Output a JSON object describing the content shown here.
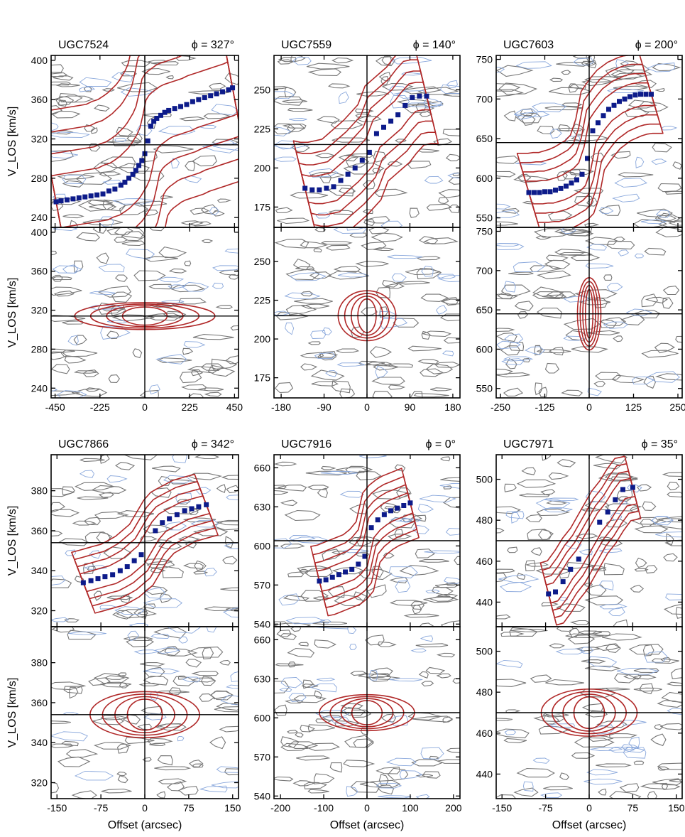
{
  "figure": {
    "ylabel": "V_LOS [km/s]",
    "xlabel": "Offset (arcsec)",
    "colors": {
      "pv_contour": "#b02828",
      "noise_positive": "#777777",
      "noise_negative": "#8aa8dc",
      "rotation_curve": "#0d1b8a",
      "axes": "#000000"
    }
  },
  "chart_data": [
    {
      "type": "scatter",
      "galaxy": "UGC7524",
      "phi_label": "ϕ = 327°",
      "pv_panel": "major-axis",
      "x_ticks": [
        -450,
        -225,
        0,
        225,
        450
      ],
      "xlim": [
        -470,
        470
      ],
      "y_ticks": [
        240,
        280,
        320,
        360,
        400
      ],
      "ylim": [
        230,
        405
      ],
      "systemic_velocity": 314,
      "major_width": 48,
      "minor_width": 12,
      "minor_half_extent": 320,
      "rotation_curve": {
        "x": [
          -445,
          -420,
          -390,
          -360,
          -330,
          -300,
          -270,
          -240,
          -210,
          -180,
          -150,
          -120,
          -100,
          -80,
          -60,
          -45,
          -30,
          -15,
          0,
          15,
          30,
          45,
          60,
          80,
          100,
          120,
          150,
          180,
          210,
          240,
          270,
          300,
          330,
          360,
          390,
          420,
          440
        ],
        "y": [
          256,
          257,
          258,
          259,
          260,
          261,
          262,
          263,
          264,
          267,
          269,
          273,
          276,
          280,
          284,
          288,
          293,
          298,
          305,
          318,
          333,
          338,
          341,
          344,
          347,
          349,
          351,
          353,
          355,
          358,
          360,
          362,
          364,
          366,
          368,
          370,
          372
        ]
      }
    },
    {
      "type": "scatter",
      "galaxy": "UGC7559",
      "phi_label": "ϕ = 140°",
      "pv_panel": "major-axis",
      "x_ticks": [
        -180,
        -90,
        0,
        90,
        180
      ],
      "xlim": [
        -195,
        195
      ],
      "y_ticks": [
        175,
        200,
        225,
        250
      ],
      "ylim": [
        162,
        272
      ],
      "systemic_velocity": 215,
      "major_width": 16,
      "minor_width": 14,
      "minor_half_extent": 55,
      "rotation_curve": {
        "x": [
          -130,
          -115,
          -100,
          -85,
          -70,
          -55,
          -40,
          -25,
          -10,
          5,
          20,
          35,
          50,
          65,
          80,
          95,
          110,
          125
        ],
        "y": [
          187,
          186,
          186,
          187,
          188,
          192,
          196,
          200,
          205,
          210,
          222,
          226,
          230,
          234,
          240,
          245,
          246,
          246
        ]
      }
    },
    {
      "type": "scatter",
      "galaxy": "UGC7603",
      "phi_label": "ϕ = 200°",
      "pv_panel": "major-axis",
      "x_ticks": [
        -250,
        -125,
        0,
        125,
        250
      ],
      "xlim": [
        -262,
        262
      ],
      "y_ticks": [
        550,
        600,
        650,
        700,
        750
      ],
      "ylim": [
        538,
        755
      ],
      "systemic_velocity": 645,
      "major_width": 26,
      "minor_width": 40,
      "minor_half_extent": 30,
      "rotation_curve": {
        "x": [
          -170,
          -155,
          -140,
          -125,
          -110,
          -95,
          -80,
          -65,
          -50,
          -35,
          -20,
          -5,
          10,
          25,
          40,
          55,
          70,
          85,
          100,
          115,
          130,
          145,
          160,
          175
        ],
        "y": [
          582,
          582,
          582,
          583,
          583,
          585,
          587,
          590,
          594,
          598,
          605,
          625,
          660,
          670,
          679,
          687,
          692,
          697,
          700,
          703,
          705,
          706,
          706,
          706
        ]
      }
    },
    {
      "type": "scatter",
      "galaxy": "UGC7866",
      "phi_label": "ϕ = 342°",
      "pv_panel": "major-axis",
      "x_ticks": [
        -150,
        -75,
        0,
        75,
        150
      ],
      "xlim": [
        -160,
        160
      ],
      "y_ticks": [
        320,
        340,
        360,
        380
      ],
      "ylim": [
        312,
        398
      ],
      "systemic_velocity": 354,
      "major_width": 8,
      "minor_width": 10,
      "minor_half_extent": 85,
      "rotation_curve": {
        "x": [
          -105,
          -92,
          -80,
          -68,
          -55,
          -42,
          -30,
          -18,
          -6,
          18,
          30,
          42,
          55,
          68,
          80,
          92,
          105
        ],
        "y": [
          334,
          335,
          336,
          337,
          338,
          340,
          342,
          345,
          348,
          360,
          364,
          366,
          368,
          370,
          371,
          372,
          373
        ]
      }
    },
    {
      "type": "scatter",
      "galaxy": "UGC7916",
      "phi_label": "ϕ = 0°",
      "pv_panel": "major-axis",
      "x_ticks": [
        -200,
        -100,
        0,
        100,
        200
      ],
      "xlim": [
        -215,
        215
      ],
      "y_ticks": [
        540,
        570,
        600,
        630,
        660
      ],
      "ylim": [
        538,
        670
      ],
      "systemic_velocity": 604,
      "major_width": 14,
      "minor_width": 12,
      "minor_half_extent": 100,
      "rotation_curve": {
        "x": [
          -110,
          -95,
          -80,
          -65,
          -50,
          -35,
          -20,
          -5,
          10,
          25,
          40,
          55,
          70,
          85,
          100
        ],
        "y": [
          573,
          574,
          576,
          578,
          580,
          582,
          586,
          592,
          614,
          620,
          624,
          627,
          629,
          631,
          633
        ]
      }
    },
    {
      "type": "scatter",
      "galaxy": "UGC7971",
      "phi_label": "ϕ = 35°",
      "pv_panel": "major-axis",
      "x_ticks": [
        -150,
        -75,
        0,
        75,
        150
      ],
      "xlim": [
        -160,
        160
      ],
      "y_ticks": [
        440,
        460,
        480,
        500
      ],
      "ylim": [
        428,
        512
      ],
      "systemic_velocity": 470,
      "major_width": 8,
      "minor_width": 10,
      "minor_half_extent": 75,
      "rotation_curve": {
        "x": [
          -70,
          -58,
          -45,
          -32,
          -18,
          18,
          32,
          45,
          58,
          75
        ],
        "y": [
          444,
          445,
          450,
          456,
          461,
          479,
          484,
          490,
          495,
          496
        ]
      }
    }
  ]
}
